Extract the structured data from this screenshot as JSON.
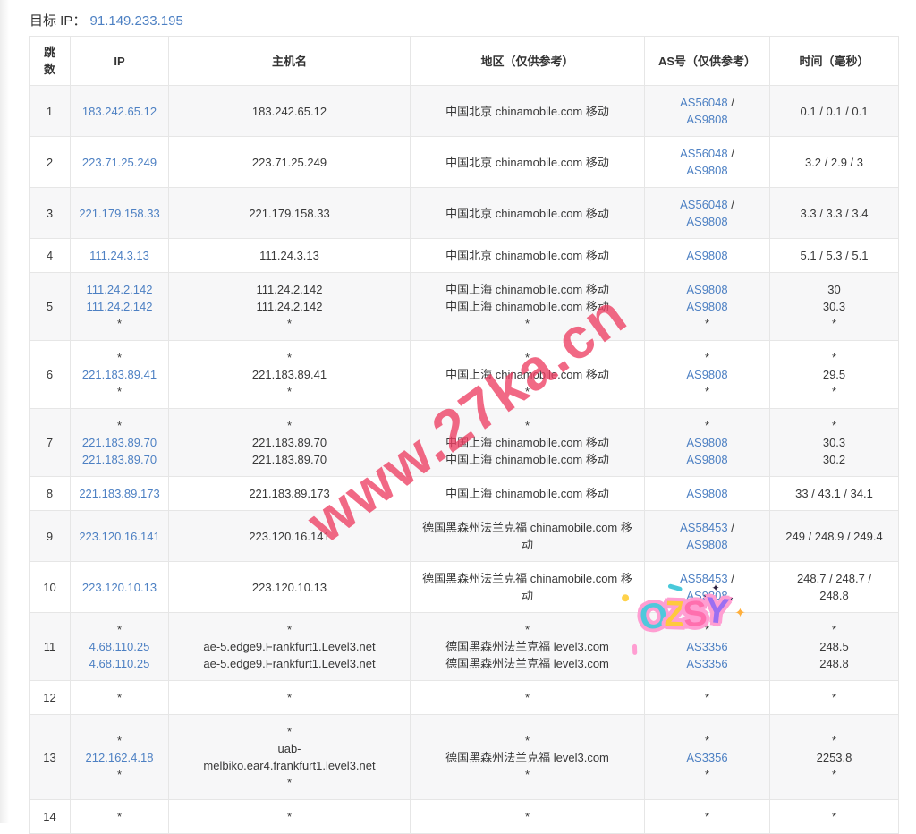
{
  "header": {
    "target_label": "目标 IP：",
    "target_ip": "91.149.233.195"
  },
  "table": {
    "columns": [
      {
        "key": "hop",
        "label": "跳数"
      },
      {
        "key": "ip",
        "label": "IP"
      },
      {
        "key": "host",
        "label": "主机名"
      },
      {
        "key": "region",
        "label": "地区（仅供参考）"
      },
      {
        "key": "asn",
        "label": "AS号（仅供参考）"
      },
      {
        "key": "time",
        "label": "时间（毫秒）"
      }
    ],
    "rows": [
      {
        "hop": "1",
        "ip": [
          [
            {
              "t": "183.242.65.12",
              "l": 1
            }
          ]
        ],
        "host": [
          [
            "183.242.65.12"
          ]
        ],
        "region": [
          [
            "中国北京 chinamobile.com 移动"
          ]
        ],
        "asn": [
          [
            {
              "t": "AS56048",
              "l": 1
            },
            " /"
          ],
          [
            {
              "t": "AS9808",
              "l": 1
            }
          ]
        ],
        "time": [
          [
            "0.1 / 0.1 / 0.1"
          ]
        ]
      },
      {
        "hop": "2",
        "ip": [
          [
            {
              "t": "223.71.25.249",
              "l": 1
            }
          ]
        ],
        "host": [
          [
            "223.71.25.249"
          ]
        ],
        "region": [
          [
            "中国北京 chinamobile.com 移动"
          ]
        ],
        "asn": [
          [
            {
              "t": "AS56048",
              "l": 1
            },
            " /"
          ],
          [
            {
              "t": "AS9808",
              "l": 1
            }
          ]
        ],
        "time": [
          [
            "3.2 / 2.9 / 3"
          ]
        ]
      },
      {
        "hop": "3",
        "ip": [
          [
            {
              "t": "221.179.158.33",
              "l": 1
            }
          ]
        ],
        "host": [
          [
            "221.179.158.33"
          ]
        ],
        "region": [
          [
            "中国北京 chinamobile.com 移动"
          ]
        ],
        "asn": [
          [
            {
              "t": "AS56048",
              "l": 1
            },
            " /"
          ],
          [
            {
              "t": "AS9808",
              "l": 1
            }
          ]
        ],
        "time": [
          [
            "3.3 / 3.3 / 3.4"
          ]
        ]
      },
      {
        "hop": "4",
        "ip": [
          [
            {
              "t": "111.24.3.13",
              "l": 1
            }
          ]
        ],
        "host": [
          [
            "111.24.3.13"
          ]
        ],
        "region": [
          [
            "中国北京 chinamobile.com 移动"
          ]
        ],
        "asn": [
          [
            {
              "t": "AS9808",
              "l": 1
            }
          ]
        ],
        "time": [
          [
            "5.1 / 5.3 / 5.1"
          ]
        ]
      },
      {
        "hop": "5",
        "ip": [
          [
            {
              "t": "111.24.2.142",
              "l": 1
            }
          ],
          [
            {
              "t": "111.24.2.142",
              "l": 1
            }
          ],
          [
            "*"
          ]
        ],
        "host": [
          [
            "111.24.2.142"
          ],
          [
            "111.24.2.142"
          ],
          [
            "*"
          ]
        ],
        "region": [
          [
            "中国上海 chinamobile.com 移动"
          ],
          [
            "中国上海 chinamobile.com 移动"
          ],
          [
            "*"
          ]
        ],
        "asn": [
          [
            {
              "t": "AS9808",
              "l": 1
            }
          ],
          [
            {
              "t": "AS9808",
              "l": 1
            }
          ],
          [
            "*"
          ]
        ],
        "time": [
          [
            "30"
          ],
          [
            "30.3"
          ],
          [
            "*"
          ]
        ]
      },
      {
        "hop": "6",
        "ip": [
          [
            "*"
          ],
          [
            {
              "t": "221.183.89.41",
              "l": 1
            }
          ],
          [
            "*"
          ]
        ],
        "host": [
          [
            "*"
          ],
          [
            "221.183.89.41"
          ],
          [
            "*"
          ]
        ],
        "region": [
          [
            "*"
          ],
          [
            "中国上海 chinamobile.com 移动"
          ],
          [
            "*"
          ]
        ],
        "asn": [
          [
            "*"
          ],
          [
            {
              "t": "AS9808",
              "l": 1
            }
          ],
          [
            "*"
          ]
        ],
        "time": [
          [
            "*"
          ],
          [
            "29.5"
          ],
          [
            "*"
          ]
        ]
      },
      {
        "hop": "7",
        "ip": [
          [
            "*"
          ],
          [
            {
              "t": "221.183.89.70",
              "l": 1
            }
          ],
          [
            {
              "t": "221.183.89.70",
              "l": 1
            }
          ]
        ],
        "host": [
          [
            "*"
          ],
          [
            "221.183.89.70"
          ],
          [
            "221.183.89.70"
          ]
        ],
        "region": [
          [
            "*"
          ],
          [
            "中国上海 chinamobile.com 移动"
          ],
          [
            "中国上海 chinamobile.com 移动"
          ]
        ],
        "asn": [
          [
            "*"
          ],
          [
            {
              "t": "AS9808",
              "l": 1
            }
          ],
          [
            {
              "t": "AS9808",
              "l": 1
            }
          ]
        ],
        "time": [
          [
            "*"
          ],
          [
            "30.3"
          ],
          [
            "30.2"
          ]
        ]
      },
      {
        "hop": "8",
        "ip": [
          [
            {
              "t": "221.183.89.173",
              "l": 1
            }
          ]
        ],
        "host": [
          [
            "221.183.89.173"
          ]
        ],
        "region": [
          [
            "中国上海 chinamobile.com 移动"
          ]
        ],
        "asn": [
          [
            {
              "t": "AS9808",
              "l": 1
            }
          ]
        ],
        "time": [
          [
            "33 / 43.1 / 34.1"
          ]
        ]
      },
      {
        "hop": "9",
        "ip": [
          [
            {
              "t": "223.120.16.141",
              "l": 1
            }
          ]
        ],
        "host": [
          [
            "223.120.16.141"
          ]
        ],
        "region": [
          [
            "德国黑森州法兰克福 chinamobile.com 移动"
          ]
        ],
        "asn": [
          [
            {
              "t": "AS58453",
              "l": 1
            },
            " /"
          ],
          [
            {
              "t": "AS9808",
              "l": 1
            }
          ]
        ],
        "time": [
          [
            "249 / 248.9 / 249.4"
          ]
        ]
      },
      {
        "hop": "10",
        "ip": [
          [
            {
              "t": "223.120.10.13",
              "l": 1
            }
          ]
        ],
        "host": [
          [
            "223.120.10.13"
          ]
        ],
        "region": [
          [
            "德国黑森州法兰克福 chinamobile.com 移动"
          ]
        ],
        "asn": [
          [
            {
              "t": "AS58453",
              "l": 1
            },
            " /"
          ],
          [
            {
              "t": "AS9808",
              "l": 1
            }
          ]
        ],
        "time": [
          [
            "248.7 / 248.7 /"
          ],
          [
            "248.8"
          ]
        ]
      },
      {
        "hop": "11",
        "ip": [
          [
            "*"
          ],
          [
            {
              "t": "4.68.110.25",
              "l": 1
            }
          ],
          [
            {
              "t": "4.68.110.25",
              "l": 1
            }
          ]
        ],
        "host": [
          [
            "*"
          ],
          [
            "ae-5.edge9.Frankfurt1.Level3.net"
          ],
          [
            "ae-5.edge9.Frankfurt1.Level3.net"
          ]
        ],
        "region": [
          [
            "*"
          ],
          [
            "德国黑森州法兰克福 level3.com"
          ],
          [
            "德国黑森州法兰克福 level3.com"
          ]
        ],
        "asn": [
          [
            "*"
          ],
          [
            {
              "t": "AS3356",
              "l": 1
            }
          ],
          [
            {
              "t": "AS3356",
              "l": 1
            }
          ]
        ],
        "time": [
          [
            "*"
          ],
          [
            "248.5"
          ],
          [
            "248.8"
          ]
        ]
      },
      {
        "hop": "12",
        "ip": [
          [
            "*"
          ]
        ],
        "host": [
          [
            "*"
          ]
        ],
        "region": [
          [
            "*"
          ]
        ],
        "asn": [
          [
            "*"
          ]
        ],
        "time": [
          [
            "*"
          ]
        ]
      },
      {
        "hop": "13",
        "ip": [
          [
            "*"
          ],
          [
            {
              "t": "212.162.4.18",
              "l": 1
            }
          ],
          [
            "*"
          ]
        ],
        "host": [
          [
            "*"
          ],
          [
            "uab-"
          ],
          [
            "melbiko.ear4.frankfurt1.level3.net"
          ],
          [
            "*"
          ]
        ],
        "region": [
          [
            "*"
          ],
          [
            "德国黑森州法兰克福 level3.com"
          ],
          [
            "*"
          ]
        ],
        "asn": [
          [
            "*"
          ],
          [
            {
              "t": "AS3356",
              "l": 1
            }
          ],
          [
            "*"
          ]
        ],
        "time": [
          [
            "*"
          ],
          [
            "2253.8"
          ],
          [
            "*"
          ]
        ]
      },
      {
        "hop": "14",
        "ip": [
          [
            "*"
          ]
        ],
        "host": [
          [
            "*"
          ]
        ],
        "region": [
          [
            "*"
          ]
        ],
        "asn": [
          [
            "*"
          ]
        ],
        "time": [
          [
            "*"
          ]
        ]
      }
    ]
  },
  "watermark": {
    "text": "www.27ka.cn",
    "color": "#ee3f63"
  },
  "sticker": {
    "text": "OZSY",
    "letter_colors": [
      "#4fc8dc",
      "#ffc93c",
      "#ff6fae",
      "#9b6ff2"
    ],
    "sparkle_char": "✦",
    "sparkle_color": "#ffaf3c"
  },
  "colors": {
    "link": "#4d80c3",
    "text": "#383838",
    "stripe": "#f7f7f8",
    "border": "#e6e6e6",
    "background": "#ffffff"
  }
}
